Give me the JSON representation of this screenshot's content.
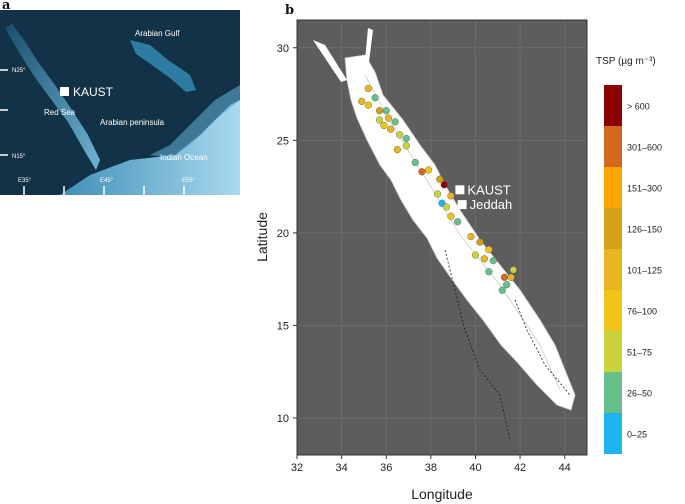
{
  "panel_a": {
    "label": "a",
    "site_label": "KAUST",
    "places": {
      "red_sea": "Red Sea",
      "arabian_gulf": "Arabian Gulf",
      "arabian_peninsula": "Arabian peninsula",
      "indian_ocean": "Indian Ocean"
    },
    "lat_ticks": [
      "N25°",
      "N15°"
    ],
    "lon_ticks": [
      "E35°",
      "E45°",
      "E55°"
    ]
  },
  "panel_b": {
    "label": "b",
    "xlabel": "Longitude",
    "ylabel": "Latitude",
    "xlim": [
      32,
      45
    ],
    "ylim": [
      8,
      31.5
    ],
    "xticks": [
      32,
      34,
      36,
      38,
      40,
      42,
      44
    ],
    "yticks": [
      10,
      15,
      20,
      25,
      30
    ],
    "sites": [
      {
        "name": "KAUST",
        "lon": 39.1,
        "lat": 22.3
      },
      {
        "name": "Jeddah",
        "lon": 39.2,
        "lat": 21.5
      }
    ]
  },
  "legend": {
    "title": "TSP (µg m⁻³)",
    "classes": [
      {
        "label": "> 600",
        "color": "#8B0000"
      },
      {
        "label": "301–600",
        "color": "#D2691E"
      },
      {
        "label": "151–300",
        "color": "#FFA500"
      },
      {
        "label": "126–150",
        "color": "#D4A017"
      },
      {
        "label": "101–125",
        "color": "#E8B422"
      },
      {
        "label": "76–100",
        "color": "#F0C419"
      },
      {
        "label": "51–75",
        "color": "#C9D23A"
      },
      {
        "label": "26–50",
        "color": "#66C08A"
      },
      {
        "label": "0–25",
        "color": "#1EB4F0"
      }
    ]
  },
  "chart_data": {
    "type": "scatter",
    "xlabel": "Longitude",
    "ylabel": "Latitude",
    "xlim": [
      32,
      45
    ],
    "ylim": [
      8,
      31.5
    ],
    "points": [
      {
        "lon": 35.2,
        "lat": 27.8,
        "cls": 4
      },
      {
        "lon": 34.9,
        "lat": 27.1,
        "cls": 4
      },
      {
        "lon": 35.5,
        "lat": 27.3,
        "cls": 7
      },
      {
        "lon": 35.2,
        "lat": 26.9,
        "cls": 5
      },
      {
        "lon": 35.7,
        "lat": 26.6,
        "cls": 3
      },
      {
        "lon": 36.0,
        "lat": 26.6,
        "cls": 7
      },
      {
        "lon": 35.7,
        "lat": 26.1,
        "cls": 6
      },
      {
        "lon": 36.1,
        "lat": 26.2,
        "cls": 4
      },
      {
        "lon": 36.4,
        "lat": 26.0,
        "cls": 7
      },
      {
        "lon": 35.9,
        "lat": 25.8,
        "cls": 5
      },
      {
        "lon": 36.2,
        "lat": 25.6,
        "cls": 4
      },
      {
        "lon": 36.6,
        "lat": 25.3,
        "cls": 6
      },
      {
        "lon": 36.9,
        "lat": 25.1,
        "cls": 7
      },
      {
        "lon": 36.9,
        "lat": 24.7,
        "cls": 6
      },
      {
        "lon": 36.5,
        "lat": 24.5,
        "cls": 4
      },
      {
        "lon": 37.3,
        "lat": 23.8,
        "cls": 7
      },
      {
        "lon": 37.6,
        "lat": 23.3,
        "cls": 1
      },
      {
        "lon": 37.9,
        "lat": 23.4,
        "cls": 5
      },
      {
        "lon": 38.4,
        "lat": 22.9,
        "cls": 3
      },
      {
        "lon": 38.6,
        "lat": 22.6,
        "cls": 0
      },
      {
        "lon": 38.3,
        "lat": 22.1,
        "cls": 6
      },
      {
        "lon": 38.9,
        "lat": 22.0,
        "cls": 4
      },
      {
        "lon": 38.5,
        "lat": 21.6,
        "cls": 8
      },
      {
        "lon": 38.7,
        "lat": 21.4,
        "cls": 6
      },
      {
        "lon": 38.9,
        "lat": 20.9,
        "cls": 5
      },
      {
        "lon": 39.2,
        "lat": 20.6,
        "cls": 7
      },
      {
        "lon": 39.8,
        "lat": 19.8,
        "cls": 4
      },
      {
        "lon": 40.2,
        "lat": 19.5,
        "cls": 3
      },
      {
        "lon": 40.6,
        "lat": 19.1,
        "cls": 5
      },
      {
        "lon": 40.0,
        "lat": 18.8,
        "cls": 6
      },
      {
        "lon": 40.4,
        "lat": 18.6,
        "cls": 4
      },
      {
        "lon": 40.8,
        "lat": 18.5,
        "cls": 7
      },
      {
        "lon": 40.6,
        "lat": 17.9,
        "cls": 7
      },
      {
        "lon": 41.7,
        "lat": 18.0,
        "cls": 6
      },
      {
        "lon": 41.3,
        "lat": 17.6,
        "cls": 1
      },
      {
        "lon": 41.6,
        "lat": 17.6,
        "cls": 4
      },
      {
        "lon": 41.4,
        "lat": 17.2,
        "cls": 7
      },
      {
        "lon": 41.2,
        "lat": 16.9,
        "cls": 7
      }
    ]
  }
}
